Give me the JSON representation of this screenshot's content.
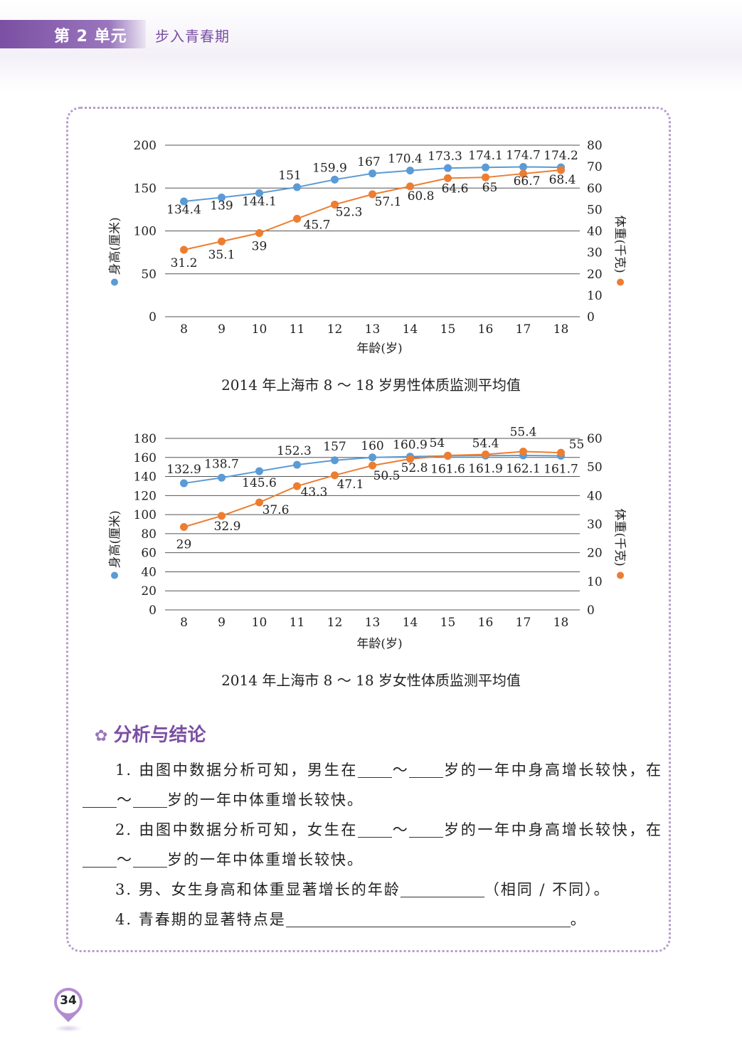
{
  "header": {
    "unit_label": "第 2 单元",
    "chapter_title": "步入青春期"
  },
  "colors": {
    "accent": "#7b4fa3",
    "height_series": "#5b9bd5",
    "weight_series": "#ed7d31"
  },
  "chart_data": [
    {
      "type": "line",
      "title": "2014 年上海市 8 ～ 18 岁男性体质监测平均值",
      "xlabel": "年龄(岁)",
      "ylabel_left": "身高(厘米)",
      "ylabel_right": "体重(千克)",
      "x": [
        8,
        9,
        10,
        11,
        12,
        13,
        14,
        15,
        16,
        17,
        18
      ],
      "x_ticks": [
        "8",
        "9",
        "10",
        "11",
        "12",
        "13",
        "14",
        "15",
        "16",
        "17",
        "18"
      ],
      "ylim_left": [
        0,
        200
      ],
      "ylim_right": [
        0,
        80
      ],
      "y_ticks_left": [
        "0",
        "50",
        "100",
        "150",
        "200"
      ],
      "y_ticks_right": [
        "0",
        "10",
        "20",
        "30",
        "40",
        "50",
        "60",
        "70",
        "80"
      ],
      "grid": true,
      "series": [
        {
          "axis": "left",
          "color": "#5b9bd5",
          "values": [
            134.4,
            139,
            144.1,
            151,
            159.9,
            167,
            170.4,
            173.3,
            174.1,
            174.7,
            174.2
          ],
          "labels": [
            "134.4",
            "139",
            "144.1",
            "151",
            "159.9",
            "167",
            "170.4",
            "173.3",
            "174.1",
            "174.7",
            "174.2"
          ]
        },
        {
          "axis": "right",
          "color": "#ed7d31",
          "values": [
            31.2,
            35.1,
            39,
            45.7,
            52.3,
            57.1,
            60.8,
            64.6,
            65,
            66.7,
            68.4
          ],
          "labels": [
            "31.2",
            "35.1",
            "39",
            "45.7",
            "52.3",
            "57.1",
            "60.8",
            "64.6",
            "65",
            "66.7",
            "68.4"
          ]
        }
      ]
    },
    {
      "type": "line",
      "title": "2014 年上海市 8 ～ 18 岁女性体质监测平均值",
      "xlabel": "年龄(岁)",
      "ylabel_left": "身高(厘米)",
      "ylabel_right": "体重(千克)",
      "x": [
        8,
        9,
        10,
        11,
        12,
        13,
        14,
        15,
        16,
        17,
        18
      ],
      "x_ticks": [
        "8",
        "9",
        "10",
        "11",
        "12",
        "13",
        "14",
        "15",
        "16",
        "17",
        "18"
      ],
      "ylim_left": [
        0,
        180
      ],
      "ylim_right": [
        0,
        60
      ],
      "y_ticks_left": [
        "0",
        "20",
        "40",
        "60",
        "80",
        "100",
        "120",
        "140",
        "160",
        "180"
      ],
      "y_ticks_right": [
        "0",
        "10",
        "20",
        "30",
        "40",
        "50",
        "60"
      ],
      "grid": true,
      "series": [
        {
          "axis": "left",
          "color": "#5b9bd5",
          "values": [
            132.9,
            138.7,
            145.6,
            152.3,
            157,
            160,
            160.9,
            161.6,
            161.9,
            162.1,
            161.7
          ],
          "labels": [
            "132.9",
            "138.7",
            "145.6",
            "152.3",
            "157",
            "160",
            "160.9",
            "161.6",
            "161.9",
            "162.1",
            "161.7"
          ]
        },
        {
          "axis": "right",
          "color": "#ed7d31",
          "values": [
            29,
            32.9,
            37.6,
            43.3,
            47.1,
            50.5,
            52.8,
            54,
            54.4,
            55.4,
            55
          ],
          "labels": [
            "29",
            "32.9",
            "37.6",
            "43.3",
            "47.1",
            "50.5",
            "52.8",
            "54",
            "54.4",
            "55.4",
            "55"
          ]
        }
      ]
    }
  ],
  "analysis": {
    "heading": "分析与结论",
    "q1_a": "1. 由图中数据分析可知，男生在",
    "q1_b": "～",
    "q1_c": "岁的一年中身高增长较快，在",
    "q1_d": "～",
    "q1_e": "岁的一年中体重增长较快。",
    "q2_a": "2. 由图中数据分析可知，女生在",
    "q2_b": "～",
    "q2_c": "岁的一年中身高增长较快，在",
    "q2_d": "～",
    "q2_e": "岁的一年中体重增长较快。",
    "q3_a": "3. 男、女生身高和体重显著增长的年龄",
    "q3_b": "（相同 / 不同）。",
    "q4_a": "4. 青春期的显著特点是",
    "q4_b": "。"
  },
  "page_number": "34"
}
